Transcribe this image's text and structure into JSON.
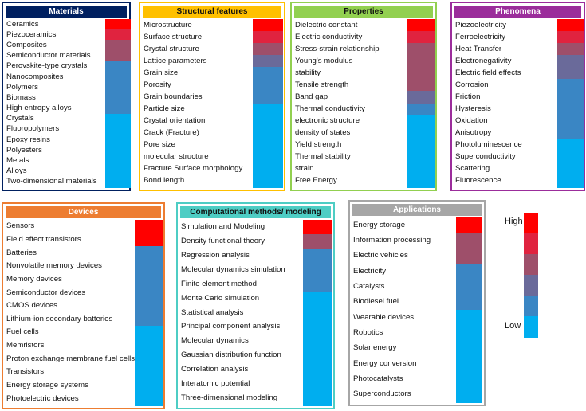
{
  "colors": {
    "high": "#ff0000",
    "mid_high": "#e0233f",
    "mid": "#9e4f6a",
    "mid_low": "#6a6a9a",
    "blue_mid": "#3a86c4",
    "low": "#00aeef"
  },
  "panels": [
    {
      "id": "materials",
      "title": "Materials",
      "title_color": "#002060",
      "border_color": "#002060",
      "items": [
        "Ceramics",
        "Piezoceramics",
        "Composites",
        "Semiconductor materials",
        "Perovskite-type crystals",
        "Nanocomposites",
        "Polymers",
        "Biomass",
        "High entropy alloys",
        "Crystals",
        "Fluoropolymers",
        "Epoxy resins",
        "Polyesters",
        "Metals",
        "Alloys",
        "Two-dimensional materials"
      ],
      "levels": [
        1.0,
        0.85,
        0.55,
        0.5,
        0.3,
        0.3,
        0.25,
        0.2,
        0.2,
        0.1,
        0.05,
        0.05,
        0.05,
        0.05,
        0.05,
        0.05
      ]
    },
    {
      "id": "structural-features",
      "title": "Structural features",
      "title_color": "#ffc000",
      "title_text_color": "#111111",
      "border_color": "#ffc000",
      "items": [
        "Microstructure",
        "Surface structure",
        "Crystal structure",
        "Lattice parameters",
        "Grain size",
        "Porosity",
        "Grain boundaries",
        "Particle size",
        "Crystal orientation",
        "Crack (Fracture)",
        "Pore size",
        "molecular structure",
        "Fracture Surface morphology",
        "Bond length"
      ],
      "levels": [
        1.0,
        0.7,
        0.5,
        0.35,
        0.3,
        0.25,
        0.2,
        0.1,
        0.05,
        0.05,
        0.05,
        0.05,
        0.05,
        0.05
      ]
    },
    {
      "id": "properties",
      "title": "Properties",
      "title_color": "#92d050",
      "title_text_color": "#111111",
      "border_color": "#92d050",
      "items": [
        "Dielectric constant",
        "Electric conductivity",
        "Stress-strain relationship",
        "Young's modulus",
        "stability",
        "Tensile strength",
        "Band gap",
        "Thermal conductivity",
        "electronic structure",
        "density of states",
        "Yield strength",
        "Thermal stability",
        "strain",
        "Free Energy"
      ],
      "levels": [
        1.0,
        0.75,
        0.65,
        0.6,
        0.55,
        0.5,
        0.45,
        0.3,
        0.1,
        0.05,
        0.05,
        0.05,
        0.05,
        0.05
      ]
    },
    {
      "id": "phenomena",
      "title": "Phenomena",
      "title_color": "#9b2d9b",
      "border_color": "#9b2d9b",
      "items": [
        "Piezoelectricity",
        "Ferroelectricity",
        "Heat Transfer",
        "Electronegativity",
        "Electric field effects",
        "Corrosion",
        "Friction",
        "Hysteresis",
        "Oxidation",
        "Anisotropy",
        "Photoluminescence",
        "Superconductivity",
        "Scattering",
        "Fluorescence"
      ],
      "levels": [
        1.0,
        0.8,
        0.55,
        0.4,
        0.35,
        0.25,
        0.25,
        0.2,
        0.2,
        0.15,
        0.1,
        0.05,
        0.05,
        0.05
      ]
    },
    {
      "id": "devices",
      "title": "Devices",
      "title_color": "#ed7d31",
      "border_color": "#ed7d31",
      "items": [
        "Sensors",
        "Field effect transistors",
        "Batteries",
        "Nonvolatile memory devices",
        "Memory devices",
        "Semiconductor devices",
        "CMOS devices",
        "Lithium-ion secondary batteries",
        "Fuel cells",
        "Memristors",
        "Proton exchange membrane fuel cells",
        "Transistors",
        "Energy storage systems",
        "Photoelectric devices"
      ],
      "levels": [
        1.0,
        1.0,
        0.3,
        0.3,
        0.25,
        0.25,
        0.2,
        0.2,
        0.05,
        0.05,
        0.05,
        0.05,
        0.05,
        0.05
      ]
    },
    {
      "id": "computational-methods",
      "title": "Computational methods/ modeling",
      "title_color": "#4ecdc4",
      "title_text_color": "#111111",
      "border_color": "#4ecdc4",
      "items": [
        "Simulation and Modeling",
        "Density functional theory",
        "Regression analysis",
        "Molecular dynamics simulation",
        "Finite element method",
        "Monte Carlo simulation",
        "Statistical analysis",
        "Principal component analysis",
        "Molecular dynamics",
        "Gaussian distribution function",
        "Correlation analysis",
        "Interatomic potential",
        "Three-dimensional modeling"
      ],
      "levels": [
        1.0,
        0.55,
        0.3,
        0.25,
        0.15,
        0.1,
        0.05,
        0.05,
        0.05,
        0.05,
        0.05,
        0.05,
        0.05
      ]
    },
    {
      "id": "applications",
      "title": "Applications",
      "title_color": "#a6a6a6",
      "border_color": "#a6a6a6",
      "items": [
        "Energy storage",
        "Information processing",
        "Electric vehicles",
        "Electricity",
        "Catalysts",
        "Biodiesel fuel",
        "Wearable devices",
        "Robotics",
        "Solar energy",
        "Energy conversion",
        "Photocatalysts",
        "Superconductors"
      ],
      "levels": [
        1.0,
        0.65,
        0.5,
        0.3,
        0.3,
        0.25,
        0.05,
        0.05,
        0.05,
        0.05,
        0.05,
        0.05
      ]
    }
  ],
  "legend": {
    "high_label": "High",
    "low_label": "Low"
  }
}
